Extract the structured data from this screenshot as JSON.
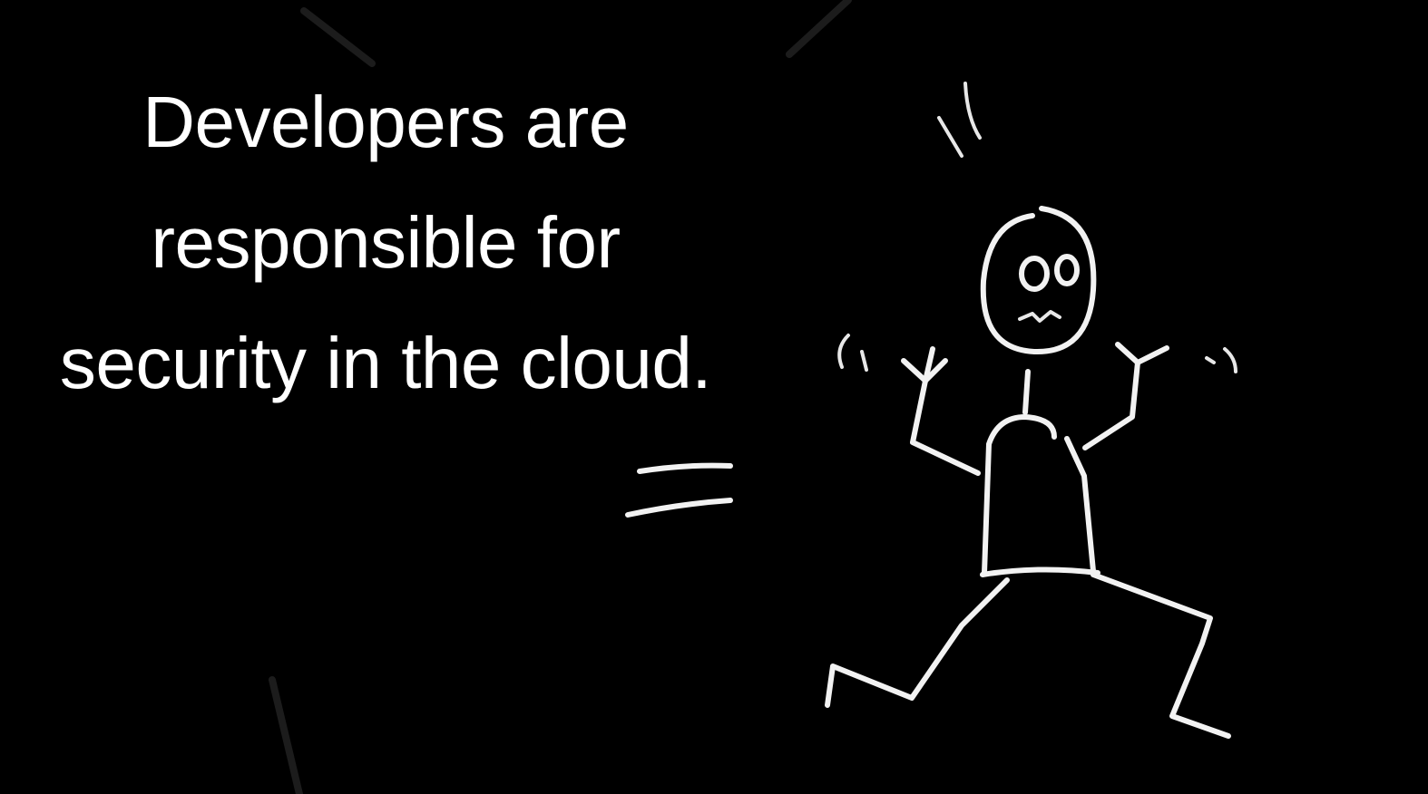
{
  "slide": {
    "headline": {
      "line1": "Developers are",
      "line2": "responsible for",
      "line3": "security in the cloud."
    },
    "background_color": "#000000",
    "text_color": "#ffffff",
    "illustration": {
      "icon": "panicked-stick-figure-icon",
      "style": "white chalk line drawing"
    }
  }
}
